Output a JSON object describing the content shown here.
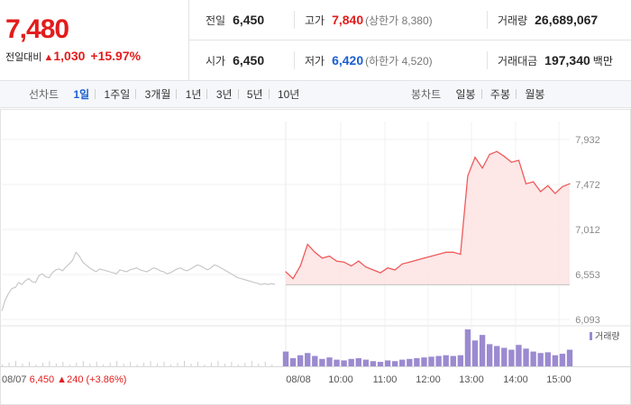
{
  "header": {
    "current_price": "7,480",
    "change_label": "전일대비",
    "change_symbol": "▲",
    "change_amount": "1,030",
    "change_percent": "+15.97%",
    "prev_close_label": "전일",
    "prev_close": "6,450",
    "high_label": "고가",
    "high": "7,840",
    "upper_limit": "(상한가 8,380)",
    "volume_label": "거래량",
    "volume": "26,689,067",
    "open_label": "시가",
    "open": "6,450",
    "low_label": "저가",
    "low": "6,420",
    "lower_limit": "(하한가 4,520)",
    "trade_value_label": "거래대금",
    "trade_value": "197,340",
    "trade_value_unit": "백만"
  },
  "tabs": {
    "line_label": "선차트",
    "line_tabs": [
      "1일",
      "1주일",
      "3개월",
      "1년",
      "3년",
      "5년",
      "10년"
    ],
    "line_active": 0,
    "candle_label": "봉차트",
    "candle_tabs": [
      "일봉",
      "주봉",
      "월봉"
    ]
  },
  "colors": {
    "up": "#e31c1c",
    "down": "#1a5fd1",
    "today_line": "#f05a5a",
    "today_fill": "#fde3e3",
    "prev_line": "#c4c4c4",
    "volume": "#9b8ad0",
    "prev_volume": "#d0d0d0"
  },
  "chart_data": {
    "type": "line",
    "y_ticks": [
      "7,932",
      "7,472",
      "7,012",
      "6,553",
      "6,093"
    ],
    "ylim": [
      6093,
      7932
    ],
    "baseline": 6450,
    "x_ticks": [
      "08/08",
      "10:00",
      "11:00",
      "12:00",
      "13:00",
      "14:00",
      "15:00"
    ],
    "grid": true,
    "prev_day": {
      "date": "08/07",
      "close": "6,450",
      "change_symbol": "▲",
      "change": "240",
      "change_percent": "(+3.86%)",
      "values": [
        6180,
        6290,
        6360,
        6410,
        6420,
        6470,
        6450,
        6490,
        6510,
        6480,
        6470,
        6540,
        6560,
        6530,
        6520,
        6570,
        6600,
        6610,
        6590,
        6630,
        6660,
        6700,
        6780,
        6740,
        6680,
        6650,
        6620,
        6600,
        6580,
        6610,
        6600,
        6590,
        6580,
        6570,
        6560,
        6600,
        6590,
        6580,
        6600,
        6610,
        6620,
        6600,
        6590,
        6580,
        6600,
        6620,
        6610,
        6590,
        6580,
        6560,
        6570,
        6590,
        6610,
        6620,
        6600,
        6590,
        6610,
        6630,
        6650,
        6640,
        6620,
        6600,
        6620,
        6650,
        6640,
        6620,
        6600,
        6580,
        6560,
        6540,
        6520,
        6510,
        6500,
        6490,
        6480,
        6470,
        6460,
        6450,
        6460,
        6450,
        6460,
        6450
      ]
    },
    "today": {
      "times": [
        "09:00",
        "09:10",
        "09:20",
        "09:30",
        "09:40",
        "09:50",
        "10:00",
        "10:10",
        "10:20",
        "10:30",
        "10:40",
        "10:50",
        "11:00",
        "11:10",
        "11:20",
        "11:30",
        "11:40",
        "11:50",
        "12:00",
        "12:10",
        "12:20",
        "12:30",
        "12:40",
        "12:50",
        "12:55",
        "13:00",
        "13:10",
        "13:20",
        "13:30",
        "13:40",
        "13:50",
        "14:00",
        "14:10",
        "14:20",
        "14:30",
        "14:40",
        "14:50",
        "15:00",
        "15:10",
        "15:20"
      ],
      "values": [
        6580,
        6510,
        6640,
        6860,
        6780,
        6720,
        6740,
        6690,
        6680,
        6640,
        6690,
        6630,
        6600,
        6570,
        6620,
        6600,
        6660,
        6680,
        6700,
        6720,
        6740,
        6760,
        6780,
        6780,
        6760,
        7560,
        7750,
        7640,
        7780,
        7810,
        7760,
        7700,
        7720,
        7480,
        7500,
        7400,
        7460,
        7380,
        7450,
        7480
      ],
      "volume": [
        40,
        22,
        30,
        36,
        28,
        20,
        24,
        18,
        16,
        20,
        22,
        18,
        14,
        12,
        16,
        14,
        18,
        20,
        22,
        24,
        26,
        28,
        30,
        28,
        30,
        100,
        70,
        85,
        60,
        55,
        50,
        45,
        58,
        48,
        40,
        36,
        38,
        30,
        34,
        45
      ],
      "volume_label": "거래량"
    }
  }
}
